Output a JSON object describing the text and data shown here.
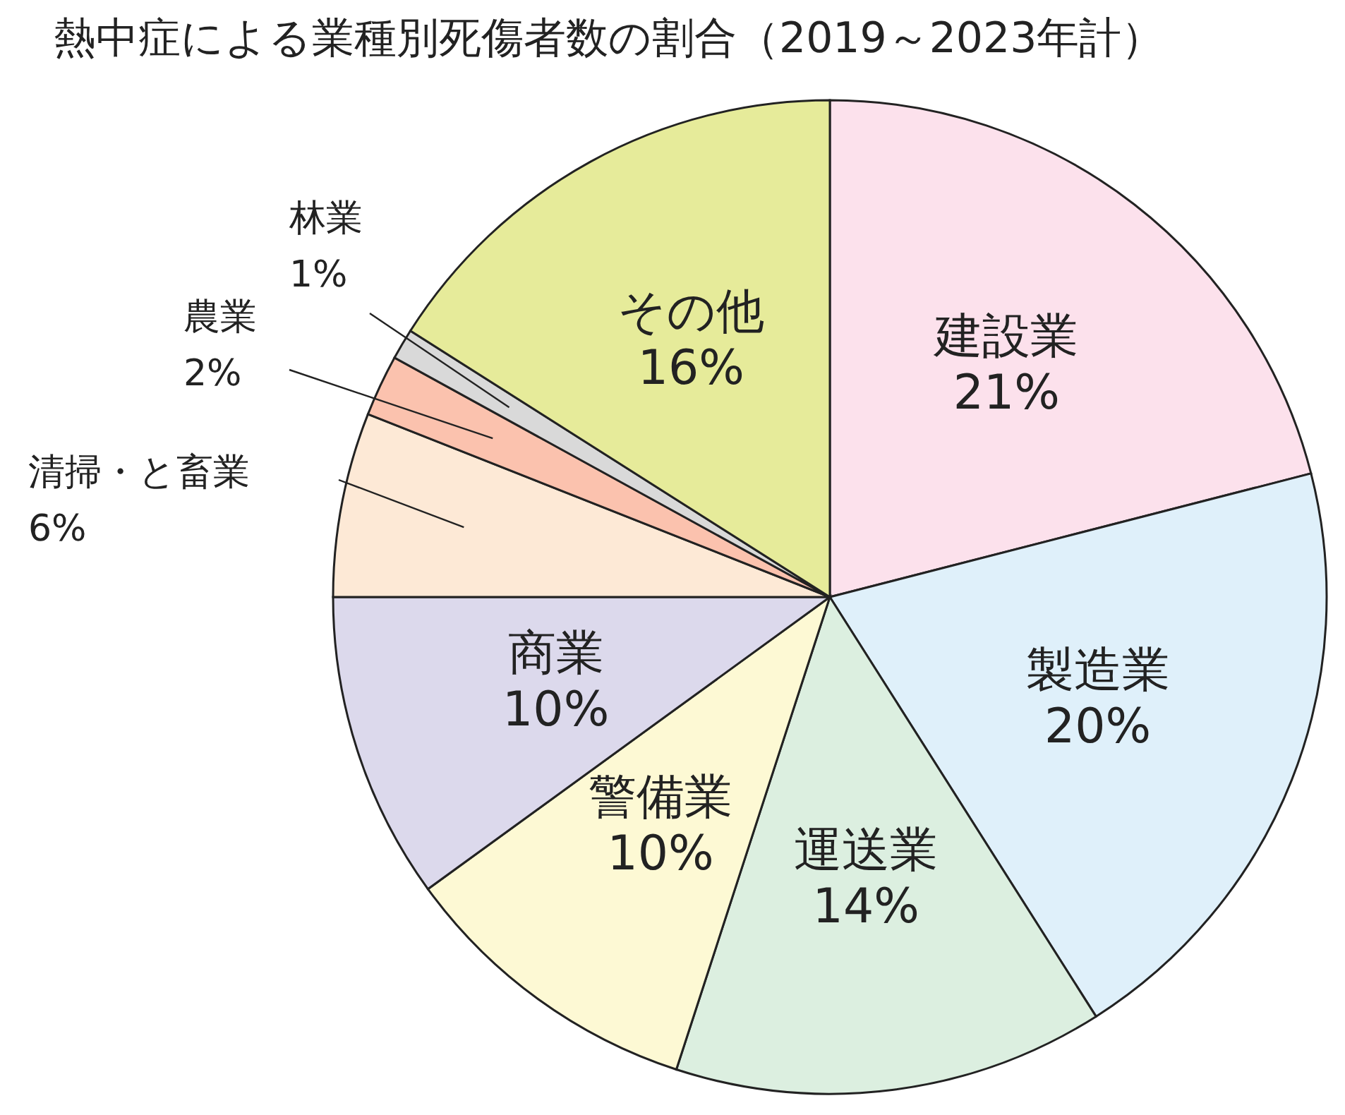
{
  "chart_data": {
    "type": "pie",
    "title": "熱中症による業種別死傷者数の割合（2019～2023年計）",
    "categories": [
      "建設業",
      "製造業",
      "運送業",
      "警備業",
      "商業",
      "清掃・と畜業",
      "農業",
      "林業",
      "その他"
    ],
    "values": [
      21,
      20,
      14,
      10,
      10,
      6,
      2,
      1,
      16
    ],
    "value_labels": [
      "21%",
      "20%",
      "14%",
      "10%",
      "10%",
      "6%",
      "2%",
      "1%",
      "16%"
    ],
    "colors": [
      "#fce1ec",
      "#dff0fa",
      "#dcefe0",
      "#fdf9d4",
      "#dcd9ec",
      "#fde9d6",
      "#fbc2ae",
      "#d9d9d9",
      "#e6eb9a"
    ]
  }
}
